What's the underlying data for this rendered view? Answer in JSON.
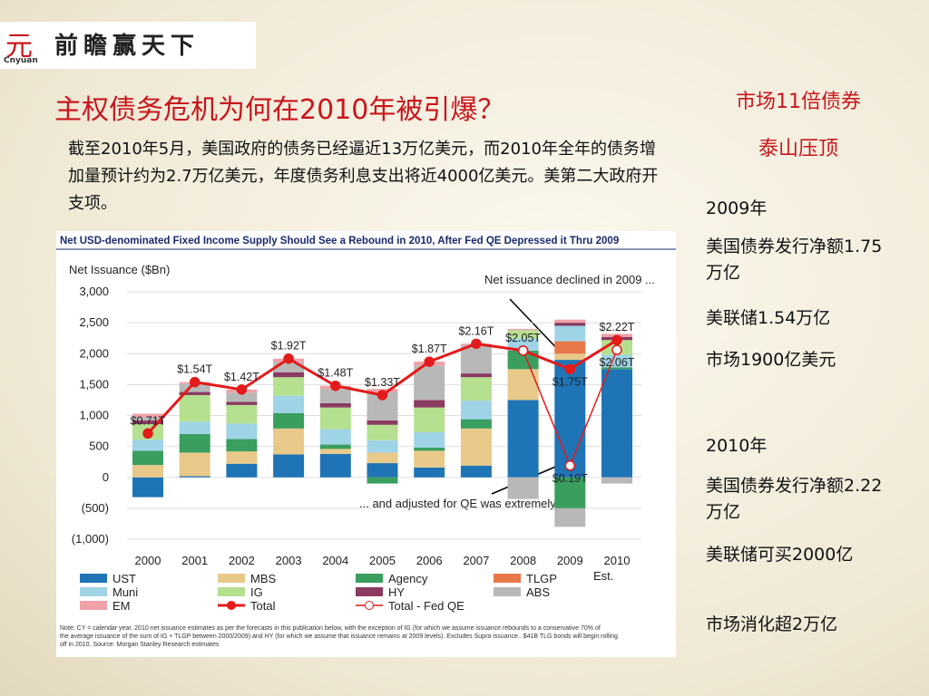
{
  "logo": {
    "title": "前瞻赢天下",
    "brand": "Cnyuan",
    "mark": "元"
  },
  "header": {
    "title": "主权债务危机为何在2010年被引爆？"
  },
  "body": {
    "text": "截至2010年5月，美国政府的债务已经逼近13万亿美元，而2010年全年的债务增加量预计约为2.7万亿美元，年度债务利息支出将近4000亿美元。美第二大政府开支项。"
  },
  "sidebar": {
    "title": [
      "市场11倍债券",
      "泰山压顶"
    ],
    "items": [
      "2009年",
      "美国债券发行净额1.75万亿",
      "美联储1.54万亿",
      "市场1900亿美元",
      "2010年",
      "美国债券发行净额2.22万亿",
      "美联储可买2000亿",
      "市场消化超2万亿"
    ]
  },
  "chart_data": {
    "type": "bar",
    "stacked": true,
    "title": "Net USD-denominated Fixed Income Supply Should See a Rebound in 2010, After Fed QE Depressed it Thru 2009",
    "y_label": "Net Issuance ($Bn)",
    "categories": [
      "2000",
      "2001",
      "2002",
      "2003",
      "2004",
      "2005",
      "2006",
      "2007",
      "2008",
      "2009",
      "2010"
    ],
    "x_note": "Est.",
    "ylim": [
      -1000,
      3000
    ],
    "yticks": [
      {
        "value": 3000,
        "label": "3,000"
      },
      {
        "value": 2500,
        "label": "2,500"
      },
      {
        "value": 2000,
        "label": "2,000"
      },
      {
        "value": 1500,
        "label": "1,500"
      },
      {
        "value": 1000,
        "label": "1,000"
      },
      500,
      0,
      {
        "value": -500,
        "label": "(500)"
      },
      {
        "value": -1000,
        "label": "(1,000)"
      }
    ],
    "grid": true,
    "series": [
      {
        "name": "UST",
        "color": "#1f74b6",
        "values": [
          -320,
          20,
          220,
          370,
          380,
          230,
          160,
          190,
          1250,
          1900,
          1750
        ]
      },
      {
        "name": "MBS",
        "color": "#e8c98a",
        "values": [
          200,
          380,
          200,
          420,
          80,
          170,
          270,
          600,
          500,
          100,
          0
        ]
      },
      {
        "name": "Agency",
        "color": "#3a9e5f",
        "values": [
          230,
          300,
          200,
          250,
          70,
          -100,
          50,
          150,
          300,
          -500,
          30
        ]
      },
      {
        "name": "TLGP",
        "color": "#e8784a",
        "values": [
          0,
          0,
          0,
          0,
          0,
          0,
          0,
          0,
          0,
          200,
          0
        ]
      },
      {
        "name": "Muni",
        "color": "#9fd3e6",
        "values": [
          180,
          200,
          250,
          280,
          250,
          200,
          250,
          300,
          200,
          250,
          200
        ]
      },
      {
        "name": "IG",
        "color": "#b5e08f",
        "values": [
          250,
          430,
          300,
          300,
          350,
          250,
          400,
          380,
          130,
          0,
          240
        ]
      },
      {
        "name": "HY",
        "color": "#8b3a62",
        "values": [
          60,
          50,
          50,
          80,
          70,
          70,
          120,
          60,
          0,
          50,
          50
        ]
      },
      {
        "name": "ABS",
        "color": "#b8b8b8",
        "values": [
          50,
          130,
          150,
          160,
          230,
          460,
          560,
          450,
          -350,
          -300,
          -100
        ]
      },
      {
        "name": "EM",
        "color": "#f0a0a8",
        "values": [
          60,
          30,
          50,
          60,
          50,
          50,
          60,
          30,
          20,
          50,
          50
        ]
      },
      {
        "name": "Total",
        "type": "line",
        "color": "#e31b1b",
        "values": [
          710,
          1540,
          1420,
          1920,
          1480,
          1330,
          1870,
          2160,
          2050,
          1750,
          2220
        ],
        "value_labels": [
          "$0.71T",
          "$1.54T",
          "$1.42T",
          "$1.92T",
          "$1.48T",
          "$1.33T",
          "$1.87T",
          "$2.16T",
          "$2.05T",
          "$1.75T",
          "$2.22T"
        ]
      },
      {
        "name": "Total - Fed QE",
        "type": "line",
        "hollow": true,
        "color": "#e31b1b",
        "values": [
          null,
          null,
          null,
          null,
          null,
          null,
          null,
          null,
          2050,
          190,
          2060
        ],
        "value_labels": [
          null,
          null,
          null,
          null,
          null,
          null,
          null,
          null,
          null,
          "$0.19T",
          "$2.06T"
        ]
      }
    ],
    "annotations": [
      "Net issuance declined in 2009 ...",
      "... and adjusted for QE was extremely low"
    ],
    "note": "Note: CY = calendar year. 2010 net issuance estimates as per the forecasts in this publication below, with the exception of IG (for which we assume issuance rebounds to a conservative 70% of the average issuance of the sum of IG + TLGP between 2000/2009) and HY (for which we assume that issuance remains at 2009 levels). Excludes Supra issuance.. $41B TLG bonds will begin rolling off in 2010. Source: Morgan Stanley Research estimates"
  }
}
